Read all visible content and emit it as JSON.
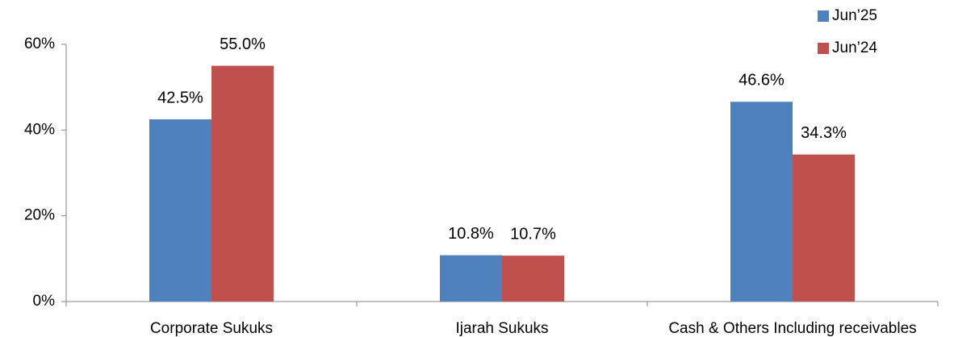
{
  "chart_data": {
    "type": "bar",
    "categories": [
      "Corporate Sukuks",
      "Ijarah Sukuks",
      "Cash & Others Including receivables"
    ],
    "series": [
      {
        "name": "Jun’25",
        "color": "#4f81bd",
        "values": [
          42.5,
          10.8,
          46.6
        ],
        "value_labels": [
          "42.5%",
          "10.8%",
          "46.6%"
        ]
      },
      {
        "name": "Jun’24",
        "color": "#c0504d",
        "values": [
          55.0,
          10.7,
          34.3
        ],
        "value_labels": [
          "55.0%",
          "10.7%",
          "34.3%"
        ]
      }
    ],
    "ylim": [
      0,
      60
    ],
    "yticks": [
      {
        "value": 0,
        "label": "0%"
      },
      {
        "value": 20,
        "label": "20%"
      },
      {
        "value": 40,
        "label": "40%"
      },
      {
        "value": 60,
        "label": "60%"
      }
    ],
    "grid": false,
    "legend": "top-right"
  }
}
